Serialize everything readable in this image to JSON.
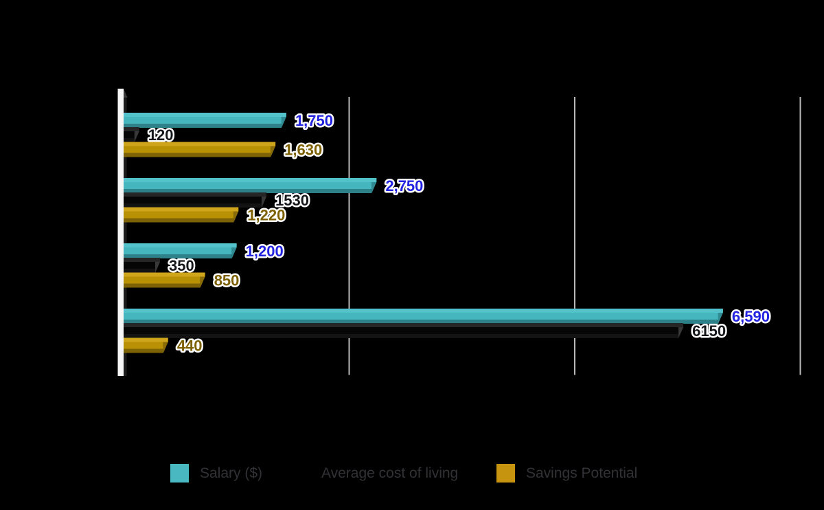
{
  "background_color": "#000000",
  "chart_data": {
    "type": "bar",
    "orientation": "horizontal",
    "style": "3d",
    "title": "",
    "xlabel": "",
    "ylabel": "",
    "categories": [
      "",
      "",
      "",
      ""
    ],
    "series": [
      {
        "name": "Salary ($)",
        "values": [
          1750,
          2750,
          1200,
          6590
        ],
        "labels": [
          "1,750",
          "2,750",
          "1,200",
          "6,590"
        ],
        "color": "#45b6be",
        "color_light": "#53c2ca",
        "color_dark": "#2e8189",
        "color_cap": "#2f8a93",
        "label_color": "#2222e1"
      },
      {
        "name": "Average cost of living",
        "values": [
          120,
          1530,
          350,
          6150
        ],
        "labels": [
          "120",
          "1530",
          "350",
          "6150"
        ],
        "color": "#060606",
        "color_light": "#262626",
        "color_dark": "#131313",
        "color_cap": "#383838",
        "label_color": "#15171a"
      },
      {
        "name": "Savings Potential",
        "values": [
          1630,
          1220,
          850,
          440
        ],
        "labels": [
          "1,630",
          "1,220",
          "850",
          "440"
        ],
        "color": "#b89104",
        "color_light": "#cfa51c",
        "color_dark": "#7d6306",
        "color_cap": "#8a6d08",
        "label_color": "#7d6000"
      }
    ],
    "xlim": [
      0,
      7765
    ],
    "gridline_values": [
      2500,
      5000,
      7500
    ],
    "grid": true,
    "axis_tick_labels_visible": false,
    "category_labels_visible": false,
    "legend_position": "bottom"
  },
  "legend": {
    "items": [
      {
        "label": "Salary ($)",
        "color": "#49b8c1"
      },
      {
        "label": "Average cost of living",
        "color": "#000000"
      },
      {
        "label": "Savings Potential",
        "color": "#c6940e"
      }
    ]
  }
}
